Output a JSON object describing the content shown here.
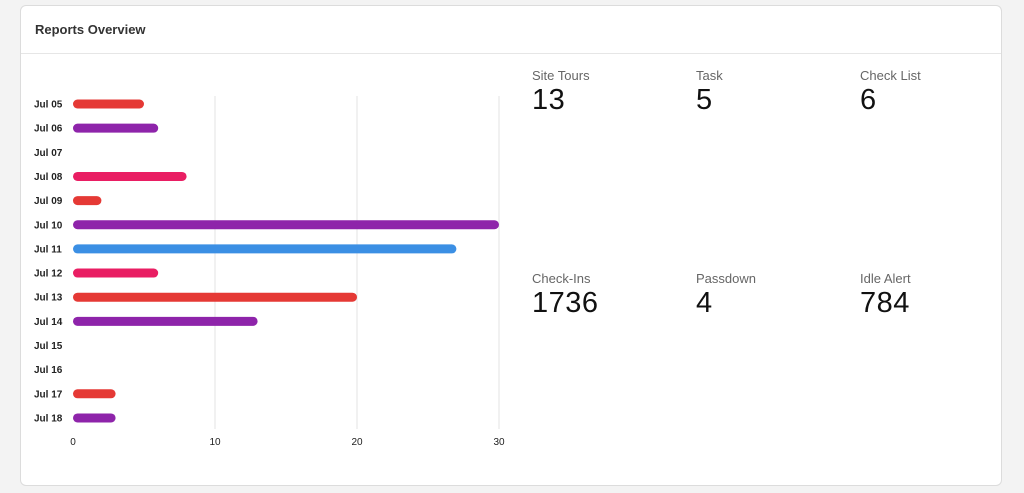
{
  "card": {
    "title": "Reports Overview"
  },
  "stats": [
    {
      "label": "Site Tours",
      "value": "13"
    },
    {
      "label": "Task",
      "value": "5"
    },
    {
      "label": "Check List",
      "value": "6"
    },
    {
      "label": "Check-Ins",
      "value": "1736"
    },
    {
      "label": "Passdown",
      "value": "4"
    },
    {
      "label": "Idle Alert",
      "value": "784"
    }
  ],
  "chart_data": {
    "type": "bar",
    "orientation": "horizontal",
    "categories": [
      "Jul 05",
      "Jul 06",
      "Jul 07",
      "Jul 08",
      "Jul 09",
      "Jul 10",
      "Jul 11",
      "Jul 12",
      "Jul 13",
      "Jul 14",
      "Jul 15",
      "Jul 16",
      "Jul 17",
      "Jul 18"
    ],
    "values": [
      5,
      6,
      0,
      8,
      2,
      30,
      27,
      6,
      20,
      13,
      0,
      0,
      3,
      3
    ],
    "colors": [
      "#e53935",
      "#8e24aa",
      "#8e24aa",
      "#e91e63",
      "#e53935",
      "#8e24aa",
      "#3b8fe4",
      "#e91e63",
      "#e53935",
      "#8e24aa",
      "#8e24aa",
      "#8e24aa",
      "#e53935",
      "#8e24aa"
    ],
    "xticks": [
      0,
      10,
      20,
      30
    ],
    "xlim": [
      0,
      30
    ],
    "grid": true,
    "title": "",
    "xlabel": "",
    "ylabel": ""
  }
}
